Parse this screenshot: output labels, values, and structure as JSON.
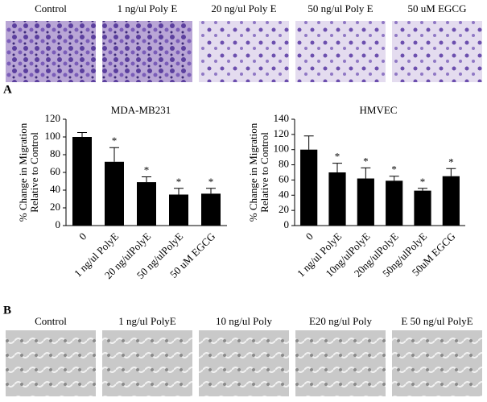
{
  "panel_a": {
    "label": "A",
    "image_labels": [
      "Control",
      "1 ng/ul Poly E",
      "20 ng/ul Poly E",
      "50 ng/ul Poly E",
      "50 uM EGCG"
    ]
  },
  "panel_b": {
    "label": "B",
    "image_labels": [
      "Control",
      "1 ng/ul PolyE",
      "10 ng/ul Poly",
      "E20 ng/ul Poly",
      "E  50 ng/ul PolyE"
    ]
  },
  "chart_data": [
    {
      "type": "bar",
      "title": "MDA-MB231",
      "y_label": [
        "% Change in Migration",
        "Relative to Control"
      ],
      "categories": [
        "0",
        "1 ng/ul PolyE",
        "20 ng/ulPolyE",
        "50 ng/ulPolyE",
        "50 uM EGCG"
      ],
      "values": [
        100,
        72,
        49,
        35,
        36
      ],
      "errors": [
        5,
        16,
        6,
        7,
        6
      ],
      "significance": [
        null,
        "*",
        "*",
        "*",
        "*"
      ],
      "color": "#000000",
      "ylim": [
        0,
        120
      ],
      "yticks": [
        0,
        20,
        40,
        60,
        80,
        100,
        120
      ]
    },
    {
      "type": "bar",
      "title": "HMVEC",
      "y_label": [
        "% Change in Migration",
        "Relative to Control"
      ],
      "categories": [
        "0",
        "1 ng/ul PolyE",
        "10ng/ulPolyE",
        "20ng/ulPolyE",
        "50ng/ulPolyE",
        "50uM EGCG"
      ],
      "values": [
        100,
        70,
        62,
        59,
        46,
        65
      ],
      "errors": [
        18,
        12,
        14,
        6,
        3,
        10
      ],
      "significance": [
        null,
        "*",
        "*",
        "*",
        "*",
        "*"
      ],
      "color": "#000000",
      "ylim": [
        0,
        140
      ],
      "yticks": [
        0,
        20,
        40,
        60,
        80,
        100,
        120,
        140
      ]
    }
  ]
}
